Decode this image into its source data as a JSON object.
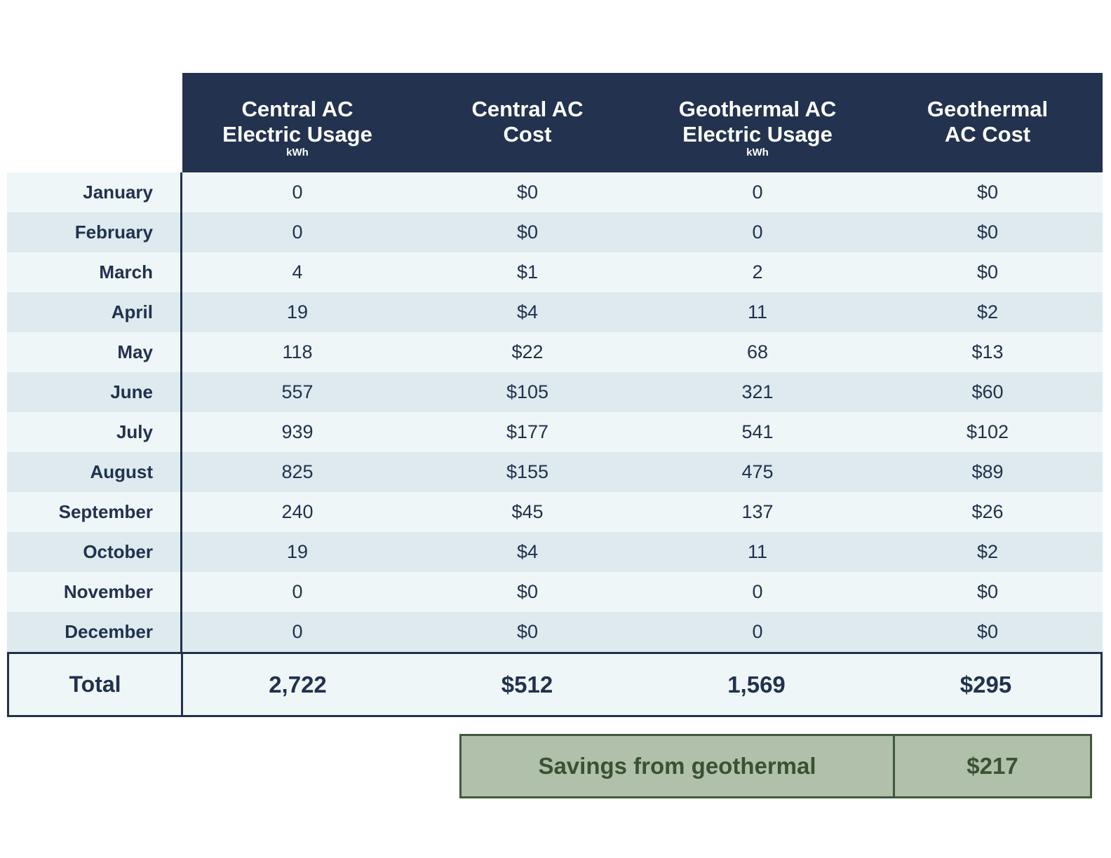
{
  "headers": [
    {
      "line1": "Central AC",
      "line2": "Electric Usage",
      "unit": "kWh"
    },
    {
      "line1": "Central AC",
      "line2": "Cost",
      "unit": ""
    },
    {
      "line1": "Geothermal AC",
      "line2": "Electric Usage",
      "unit": "kWh"
    },
    {
      "line1": "Geothermal",
      "line2": "AC Cost",
      "unit": ""
    }
  ],
  "rows": [
    {
      "month": "January",
      "values": [
        "0",
        "$0",
        "0",
        "$0"
      ]
    },
    {
      "month": "February",
      "values": [
        "0",
        "$0",
        "0",
        "$0"
      ]
    },
    {
      "month": "March",
      "values": [
        "4",
        "$1",
        "2",
        "$0"
      ]
    },
    {
      "month": "April",
      "values": [
        "19",
        "$4",
        "11",
        "$2"
      ]
    },
    {
      "month": "May",
      "values": [
        "118",
        "$22",
        "68",
        "$13"
      ]
    },
    {
      "month": "June",
      "values": [
        "557",
        "$105",
        "321",
        "$60"
      ]
    },
    {
      "month": "July",
      "values": [
        "939",
        "$177",
        "541",
        "$102"
      ]
    },
    {
      "month": "August",
      "values": [
        "825",
        "$155",
        "475",
        "$89"
      ]
    },
    {
      "month": "September",
      "values": [
        "240",
        "$45",
        "137",
        "$26"
      ]
    },
    {
      "month": "October",
      "values": [
        "19",
        "$4",
        "11",
        "$2"
      ]
    },
    {
      "month": "November",
      "values": [
        "0",
        "$0",
        "0",
        "$0"
      ]
    },
    {
      "month": "December",
      "values": [
        "0",
        "$0",
        "0",
        "$0"
      ]
    }
  ],
  "total": {
    "label": "Total",
    "values": [
      "2,722",
      "$512",
      "1,569",
      "$295"
    ]
  },
  "savings": {
    "label": "Savings from geothermal",
    "value": "$217"
  },
  "colors": {
    "header_bg": "#22324f",
    "text": "#21324f",
    "row_light": "#eff6f7",
    "row_dark": "#deeaee",
    "savings_bg": "#b1c0ab",
    "savings_border": "#3f5a3a"
  }
}
